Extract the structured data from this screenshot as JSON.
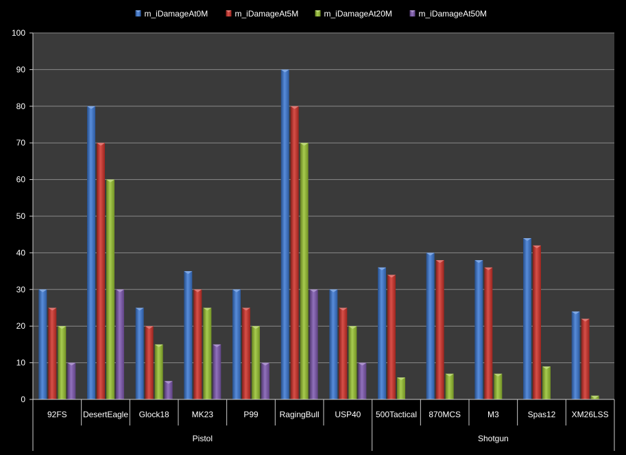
{
  "chart_data": {
    "type": "bar",
    "title": "",
    "xlabel": "",
    "ylabel": "",
    "ylim": [
      0,
      100
    ],
    "yticks": [
      0,
      10,
      20,
      30,
      40,
      50,
      60,
      70,
      80,
      90,
      100
    ],
    "grid": true,
    "legend_position": "top",
    "categories": [
      "92FS",
      "DesertEagle",
      "Glock18",
      "MK23",
      "P99",
      "RagingBull",
      "USP40",
      "500Tactical",
      "870MCS",
      "M3",
      "Spas12",
      "XM26LSS"
    ],
    "groups": [
      {
        "name": "Pistol",
        "start": 0,
        "count": 7
      },
      {
        "name": "Shotgun",
        "start": 7,
        "count": 5
      }
    ],
    "series": [
      {
        "name": "m_iDamageAt0M",
        "color": "#3a78d4",
        "values": [
          30,
          80,
          25,
          35,
          30,
          90,
          30,
          36,
          40,
          38,
          44,
          24
        ]
      },
      {
        "name": "m_iDamageAt5M",
        "color": "#d03028",
        "values": [
          25,
          70,
          20,
          30,
          25,
          80,
          25,
          34,
          38,
          36,
          42,
          22
        ]
      },
      {
        "name": "m_iDamageAt20M",
        "color": "#98c230",
        "values": [
          20,
          60,
          15,
          25,
          20,
          70,
          20,
          6,
          7,
          7,
          9,
          1
        ]
      },
      {
        "name": "m_iDamageAt50M",
        "color": "#7e58b0",
        "values": [
          10,
          30,
          5,
          15,
          10,
          30,
          10,
          0,
          0,
          0,
          0,
          0
        ]
      }
    ]
  }
}
